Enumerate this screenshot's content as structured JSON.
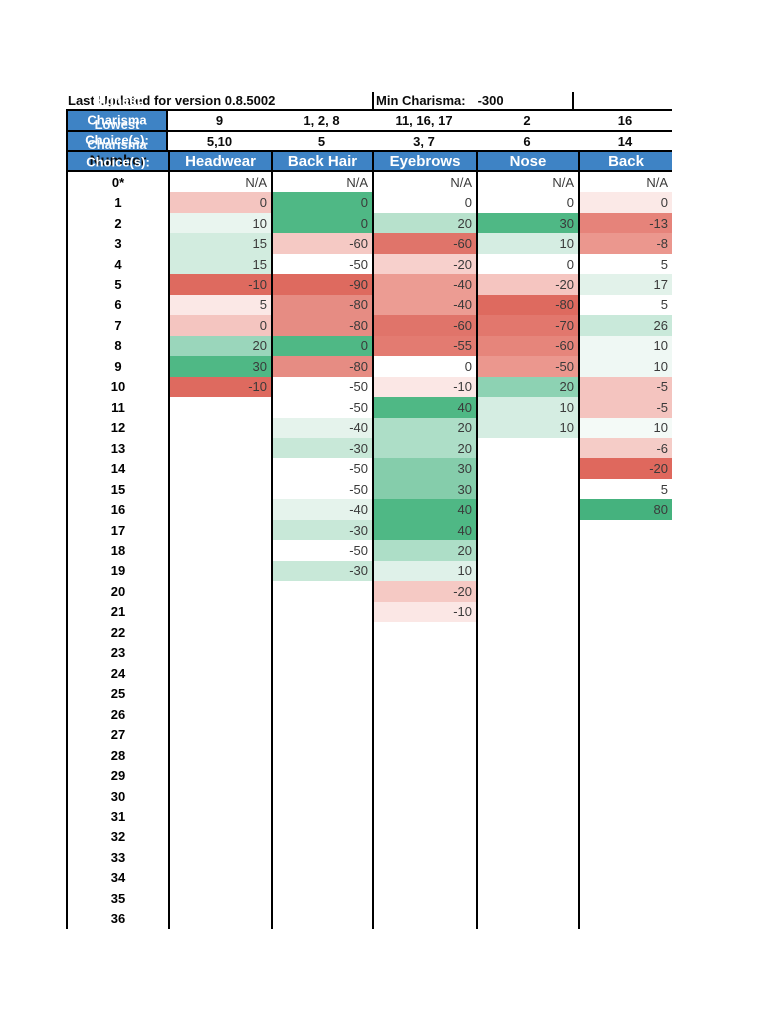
{
  "doc": {
    "top_row": {
      "last_updated": "Last Updated for version 0.8.5002",
      "min_charisma_label": "Min Charisma:",
      "min_charisma_value": "-300"
    },
    "overlap_labels": {
      "highest": "Highest",
      "row1_a": "Charisma",
      "row1_b": "Lowest",
      "row2_a": "Choice(s):",
      "row2_b": "Charisma",
      "row3_a": "Number",
      "row3_b": "Choice(s):"
    },
    "highest_charisma_row": [
      "9",
      "1, 2, 8",
      "11, 16, 17",
      "2",
      "16"
    ],
    "lowest_charisma_row": [
      "5,10",
      "5",
      "3, 7",
      "6",
      "14"
    ],
    "column_headers": [
      "Number",
      "Headwear",
      "Back Hair",
      "Eyebrows",
      "Nose",
      "Back"
    ],
    "colors": {
      "header_blue": "#3E83C5",
      "border_black": "#000000",
      "strong_green": "#4FB885",
      "strong_red": "#DE6A5F"
    },
    "rows": [
      {
        "n": "0*",
        "c": [
          {
            "v": "N/A",
            "bg": ""
          },
          {
            "v": "N/A",
            "bg": ""
          },
          {
            "v": "N/A",
            "bg": ""
          },
          {
            "v": "N/A",
            "bg": ""
          },
          {
            "v": "N/A",
            "bg": ""
          }
        ]
      },
      {
        "n": "1",
        "c": [
          {
            "v": "0",
            "bg": "#F4C5C0"
          },
          {
            "v": "0",
            "bg": "#4FB885"
          },
          {
            "v": "0",
            "bg": ""
          },
          {
            "v": "0",
            "bg": ""
          },
          {
            "v": "0",
            "bg": "#FBE9E7"
          }
        ]
      },
      {
        "n": "2",
        "c": [
          {
            "v": "10",
            "bg": "#E9F5EF"
          },
          {
            "v": "0",
            "bg": "#4FB885"
          },
          {
            "v": "20",
            "bg": "#B7E1CC"
          },
          {
            "v": "30",
            "bg": "#4FB885"
          },
          {
            "v": "-13",
            "bg": "#E6837A"
          }
        ]
      },
      {
        "n": "3",
        "c": [
          {
            "v": "15",
            "bg": "#D2ECDF"
          },
          {
            "v": "-60",
            "bg": "#F5C9C4"
          },
          {
            "v": "-60",
            "bg": "#E0746A"
          },
          {
            "v": "10",
            "bg": "#D5EDE2"
          },
          {
            "v": "-8",
            "bg": "#EB978E"
          }
        ]
      },
      {
        "n": "4",
        "c": [
          {
            "v": "15",
            "bg": "#D2ECDF"
          },
          {
            "v": "-50",
            "bg": ""
          },
          {
            "v": "-20",
            "bg": "#F7D0CC"
          },
          {
            "v": "0",
            "bg": ""
          },
          {
            "v": "5",
            "bg": ""
          }
        ]
      },
      {
        "n": "5",
        "c": [
          {
            "v": "-10",
            "bg": "#DE6A5F"
          },
          {
            "v": "-90",
            "bg": "#DE6A5F"
          },
          {
            "v": "-40",
            "bg": "#EC9C93"
          },
          {
            "v": "-20",
            "bg": "#F5C5C0"
          },
          {
            "v": "17",
            "bg": "#E2F2EA"
          }
        ]
      },
      {
        "n": "6",
        "c": [
          {
            "v": "5",
            "bg": "#FBE8E6"
          },
          {
            "v": "-80",
            "bg": "#E68C83"
          },
          {
            "v": "-40",
            "bg": "#EC9C93"
          },
          {
            "v": "-80",
            "bg": "#DE6A5F"
          },
          {
            "v": "5",
            "bg": ""
          }
        ]
      },
      {
        "n": "7",
        "c": [
          {
            "v": "0",
            "bg": "#F4C5C0"
          },
          {
            "v": "-80",
            "bg": "#E68C83"
          },
          {
            "v": "-60",
            "bg": "#E0746A"
          },
          {
            "v": "-70",
            "bg": "#E2776D"
          },
          {
            "v": "26",
            "bg": "#C9E9DA"
          }
        ]
      },
      {
        "n": "8",
        "c": [
          {
            "v": "20",
            "bg": "#9AD6BB"
          },
          {
            "v": "0",
            "bg": "#4FB885"
          },
          {
            "v": "-55",
            "bg": "#E37B71"
          },
          {
            "v": "-60",
            "bg": "#E6857B"
          },
          {
            "v": "10",
            "bg": "#EFF8F4"
          }
        ]
      },
      {
        "n": "9",
        "c": [
          {
            "v": "30",
            "bg": "#4FB885"
          },
          {
            "v": "-80",
            "bg": "#E68C83"
          },
          {
            "v": "0",
            "bg": ""
          },
          {
            "v": "-50",
            "bg": "#EB978E"
          },
          {
            "v": "10",
            "bg": "#EFF8F4"
          }
        ]
      },
      {
        "n": "10",
        "c": [
          {
            "v": "-10",
            "bg": "#DE6A5F"
          },
          {
            "v": "-50",
            "bg": ""
          },
          {
            "v": "-10",
            "bg": "#FBE7E5"
          },
          {
            "v": "20",
            "bg": "#8DD2B3"
          },
          {
            "v": "-5",
            "bg": "#F4C4BF"
          }
        ]
      },
      {
        "n": "11",
        "c": [
          {
            "v": "",
            "bg": ""
          },
          {
            "v": "-50",
            "bg": ""
          },
          {
            "v": "40",
            "bg": "#4FB885"
          },
          {
            "v": "10",
            "bg": "#D5EDE2"
          },
          {
            "v": "-5",
            "bg": "#F4C4BF"
          }
        ]
      },
      {
        "n": "12",
        "c": [
          {
            "v": "",
            "bg": ""
          },
          {
            "v": "-40",
            "bg": "#E5F3EC"
          },
          {
            "v": "20",
            "bg": "#ADDEC7"
          },
          {
            "v": "10",
            "bg": "#D5EDE2"
          },
          {
            "v": "10",
            "bg": "#F4FAF7"
          }
        ]
      },
      {
        "n": "13",
        "c": [
          {
            "v": "",
            "bg": ""
          },
          {
            "v": "-30",
            "bg": "#C8E8D8"
          },
          {
            "v": "20",
            "bg": "#ADDEC7"
          },
          {
            "v": "",
            "bg": ""
          },
          {
            "v": "-6",
            "bg": "#F5CCC7"
          }
        ]
      },
      {
        "n": "14",
        "c": [
          {
            "v": "",
            "bg": ""
          },
          {
            "v": "-50",
            "bg": ""
          },
          {
            "v": "30",
            "bg": "#85CDAB"
          },
          {
            "v": "",
            "bg": ""
          },
          {
            "v": "-20",
            "bg": "#DF685D"
          }
        ]
      },
      {
        "n": "15",
        "c": [
          {
            "v": "",
            "bg": ""
          },
          {
            "v": "-50",
            "bg": ""
          },
          {
            "v": "30",
            "bg": "#85CDAB"
          },
          {
            "v": "",
            "bg": ""
          },
          {
            "v": "5",
            "bg": ""
          }
        ]
      },
      {
        "n": "16",
        "c": [
          {
            "v": "",
            "bg": ""
          },
          {
            "v": "-40",
            "bg": "#E5F3EC"
          },
          {
            "v": "40",
            "bg": "#4FB885"
          },
          {
            "v": "",
            "bg": ""
          },
          {
            "v": "80",
            "bg": "#45B27E"
          }
        ]
      },
      {
        "n": "17",
        "c": [
          {
            "v": "",
            "bg": ""
          },
          {
            "v": "-30",
            "bg": "#C8E8D8"
          },
          {
            "v": "40",
            "bg": "#4FB885"
          },
          {
            "v": "",
            "bg": ""
          },
          {
            "v": "",
            "bg": ""
          }
        ]
      },
      {
        "n": "18",
        "c": [
          {
            "v": "",
            "bg": ""
          },
          {
            "v": "-50",
            "bg": ""
          },
          {
            "v": "20",
            "bg": "#ADDEC7"
          },
          {
            "v": "",
            "bg": ""
          },
          {
            "v": "",
            "bg": ""
          }
        ]
      },
      {
        "n": "19",
        "c": [
          {
            "v": "",
            "bg": ""
          },
          {
            "v": "-30",
            "bg": "#C8E8D8"
          },
          {
            "v": "10",
            "bg": "#DFF1E9"
          },
          {
            "v": "",
            "bg": ""
          },
          {
            "v": "",
            "bg": ""
          }
        ]
      },
      {
        "n": "20",
        "c": [
          {
            "v": "",
            "bg": ""
          },
          {
            "v": "",
            "bg": ""
          },
          {
            "v": "-20",
            "bg": "#F5C9C4"
          },
          {
            "v": "",
            "bg": ""
          },
          {
            "v": "",
            "bg": ""
          }
        ]
      },
      {
        "n": "21",
        "c": [
          {
            "v": "",
            "bg": ""
          },
          {
            "v": "",
            "bg": ""
          },
          {
            "v": "-10",
            "bg": "#FBE7E5"
          },
          {
            "v": "",
            "bg": ""
          },
          {
            "v": "",
            "bg": ""
          }
        ]
      },
      {
        "n": "22",
        "c": [
          {
            "v": "",
            "bg": ""
          },
          {
            "v": "",
            "bg": ""
          },
          {
            "v": "",
            "bg": ""
          },
          {
            "v": "",
            "bg": ""
          },
          {
            "v": "",
            "bg": ""
          }
        ]
      },
      {
        "n": "23",
        "c": [
          {
            "v": "",
            "bg": ""
          },
          {
            "v": "",
            "bg": ""
          },
          {
            "v": "",
            "bg": ""
          },
          {
            "v": "",
            "bg": ""
          },
          {
            "v": "",
            "bg": ""
          }
        ]
      },
      {
        "n": "24",
        "c": [
          {
            "v": "",
            "bg": ""
          },
          {
            "v": "",
            "bg": ""
          },
          {
            "v": "",
            "bg": ""
          },
          {
            "v": "",
            "bg": ""
          },
          {
            "v": "",
            "bg": ""
          }
        ]
      },
      {
        "n": "25",
        "c": [
          {
            "v": "",
            "bg": ""
          },
          {
            "v": "",
            "bg": ""
          },
          {
            "v": "",
            "bg": ""
          },
          {
            "v": "",
            "bg": ""
          },
          {
            "v": "",
            "bg": ""
          }
        ]
      },
      {
        "n": "26",
        "c": [
          {
            "v": "",
            "bg": ""
          },
          {
            "v": "",
            "bg": ""
          },
          {
            "v": "",
            "bg": ""
          },
          {
            "v": "",
            "bg": ""
          },
          {
            "v": "",
            "bg": ""
          }
        ]
      },
      {
        "n": "27",
        "c": [
          {
            "v": "",
            "bg": ""
          },
          {
            "v": "",
            "bg": ""
          },
          {
            "v": "",
            "bg": ""
          },
          {
            "v": "",
            "bg": ""
          },
          {
            "v": "",
            "bg": ""
          }
        ]
      },
      {
        "n": "28",
        "c": [
          {
            "v": "",
            "bg": ""
          },
          {
            "v": "",
            "bg": ""
          },
          {
            "v": "",
            "bg": ""
          },
          {
            "v": "",
            "bg": ""
          },
          {
            "v": "",
            "bg": ""
          }
        ]
      },
      {
        "n": "29",
        "c": [
          {
            "v": "",
            "bg": ""
          },
          {
            "v": "",
            "bg": ""
          },
          {
            "v": "",
            "bg": ""
          },
          {
            "v": "",
            "bg": ""
          },
          {
            "v": "",
            "bg": ""
          }
        ]
      },
      {
        "n": "30",
        "c": [
          {
            "v": "",
            "bg": ""
          },
          {
            "v": "",
            "bg": ""
          },
          {
            "v": "",
            "bg": ""
          },
          {
            "v": "",
            "bg": ""
          },
          {
            "v": "",
            "bg": ""
          }
        ]
      },
      {
        "n": "31",
        "c": [
          {
            "v": "",
            "bg": ""
          },
          {
            "v": "",
            "bg": ""
          },
          {
            "v": "",
            "bg": ""
          },
          {
            "v": "",
            "bg": ""
          },
          {
            "v": "",
            "bg": ""
          }
        ]
      },
      {
        "n": "32",
        "c": [
          {
            "v": "",
            "bg": ""
          },
          {
            "v": "",
            "bg": ""
          },
          {
            "v": "",
            "bg": ""
          },
          {
            "v": "",
            "bg": ""
          },
          {
            "v": "",
            "bg": ""
          }
        ]
      },
      {
        "n": "33",
        "c": [
          {
            "v": "",
            "bg": ""
          },
          {
            "v": "",
            "bg": ""
          },
          {
            "v": "",
            "bg": ""
          },
          {
            "v": "",
            "bg": ""
          },
          {
            "v": "",
            "bg": ""
          }
        ]
      },
      {
        "n": "34",
        "c": [
          {
            "v": "",
            "bg": ""
          },
          {
            "v": "",
            "bg": ""
          },
          {
            "v": "",
            "bg": ""
          },
          {
            "v": "",
            "bg": ""
          },
          {
            "v": "",
            "bg": ""
          }
        ]
      },
      {
        "n": "35",
        "c": [
          {
            "v": "",
            "bg": ""
          },
          {
            "v": "",
            "bg": ""
          },
          {
            "v": "",
            "bg": ""
          },
          {
            "v": "",
            "bg": ""
          },
          {
            "v": "",
            "bg": ""
          }
        ]
      },
      {
        "n": "36",
        "c": [
          {
            "v": "",
            "bg": ""
          },
          {
            "v": "",
            "bg": ""
          },
          {
            "v": "",
            "bg": ""
          },
          {
            "v": "",
            "bg": ""
          },
          {
            "v": "",
            "bg": ""
          }
        ]
      }
    ]
  }
}
